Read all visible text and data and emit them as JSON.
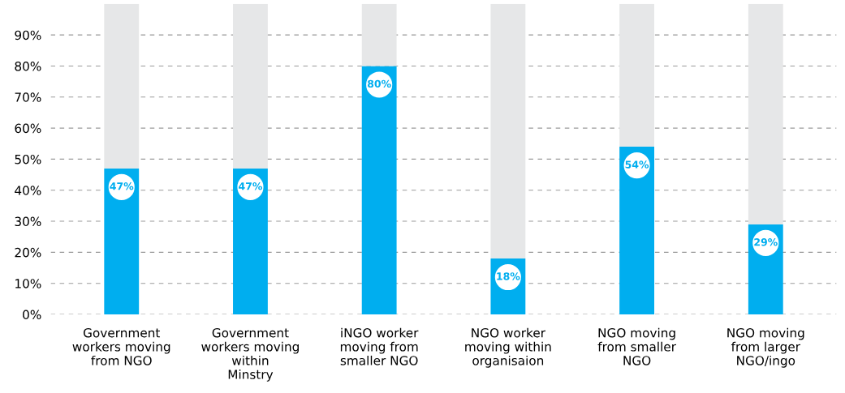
{
  "chart_data": {
    "type": "bar",
    "stacked": true,
    "categories": [
      "Government\nworkers moving\nfrom NGO",
      "Government\nworkers moving\nwithin\nMinstry",
      "iNGO worker\nmoving from\nsmaller NGO",
      "NGO worker\nmoving within\norganisaion",
      "NGO moving\nfrom smaller\nNGO",
      "NGO moving\nfrom larger\nNGO/ingo"
    ],
    "series": [
      {
        "color": "#00aeef",
        "values": [
          47,
          47,
          80,
          18,
          54,
          29
        ],
        "value_labels": [
          "47%",
          "47%",
          "80%",
          "18%",
          "54%",
          "29%"
        ]
      },
      {
        "color": "#e6e7e8",
        "values": [
          53,
          53,
          20,
          82,
          46,
          71
        ]
      }
    ],
    "ylim": [
      0,
      100
    ],
    "yticks": [
      {
        "value": 0,
        "label": "0%"
      },
      {
        "value": 10,
        "label": "10%"
      },
      {
        "value": 20,
        "label": "20%"
      },
      {
        "value": 30,
        "label": "30%"
      },
      {
        "value": 40,
        "label": "40%"
      },
      {
        "value": 50,
        "label": "50%"
      },
      {
        "value": 60,
        "label": "60%"
      },
      {
        "value": 70,
        "label": "70%"
      },
      {
        "value": 80,
        "label": "80%"
      },
      {
        "value": 90,
        "label": "90%"
      }
    ],
    "grid": "y"
  }
}
